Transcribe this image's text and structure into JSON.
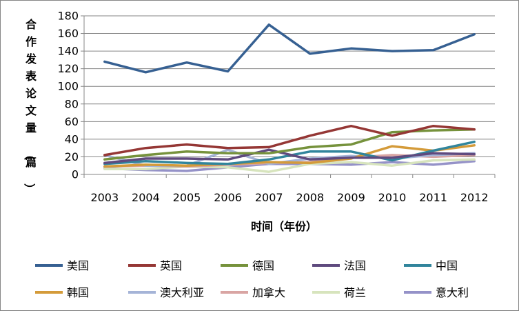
{
  "chart_data": {
    "type": "line",
    "ylabel": "合作发表论文量（篇）",
    "xlabel": "时间（年份）",
    "x": [
      "2003",
      "2004",
      "2005",
      "2006",
      "2007",
      "2008",
      "2009",
      "2010",
      "2011",
      "2012"
    ],
    "ylim": [
      0,
      180
    ],
    "yticks": [
      0,
      20,
      40,
      60,
      80,
      100,
      120,
      140,
      160,
      180
    ],
    "grid": "horizontal",
    "legend_position": "bottom",
    "series": [
      {
        "name": "美国",
        "color": "#366092",
        "values": [
          128,
          116,
          127,
          117,
          170,
          137,
          143,
          140,
          141,
          159
        ]
      },
      {
        "name": "英国",
        "color": "#953735",
        "values": [
          22,
          30,
          34,
          30,
          31,
          44,
          55,
          44,
          55,
          51
        ]
      },
      {
        "name": "德国",
        "color": "#76923c",
        "values": [
          17,
          22,
          26,
          24,
          24,
          31,
          34,
          48,
          50,
          51
        ]
      },
      {
        "name": "法国",
        "color": "#5f4a7e",
        "values": [
          13,
          18,
          18,
          17,
          28,
          17,
          19,
          19,
          24,
          23
        ]
      },
      {
        "name": "中国",
        "color": "#31859c",
        "values": [
          12,
          15,
          13,
          12,
          17,
          26,
          26,
          16,
          27,
          37
        ]
      },
      {
        "name": "韩国",
        "color": "#d49b3a",
        "values": [
          9,
          11,
          10,
          12,
          14,
          13,
          18,
          32,
          27,
          33
        ]
      },
      {
        "name": "澳大利亚",
        "color": "#a5b4d7",
        "values": [
          22,
          10,
          10,
          28,
          12,
          18,
          21,
          18,
          22,
          24
        ]
      },
      {
        "name": "加拿大",
        "color": "#d9a5a3",
        "values": [
          9,
          10,
          9,
          11,
          13,
          14,
          19,
          22,
          20,
          22
        ]
      },
      {
        "name": "荷兰",
        "color": "#d7e4bd",
        "values": [
          6,
          6,
          9,
          8,
          3,
          12,
          14,
          10,
          16,
          17
        ]
      },
      {
        "name": "意大利",
        "color": "#9592c8",
        "values": [
          7,
          5,
          4,
          8,
          12,
          12,
          11,
          14,
          11,
          15
        ]
      }
    ]
  }
}
